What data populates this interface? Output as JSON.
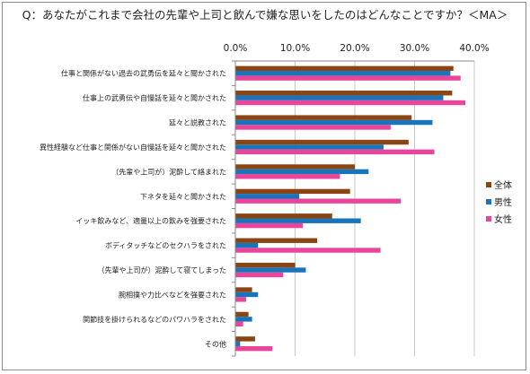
{
  "chart_data": {
    "type": "bar",
    "orientation": "horizontal",
    "title": "Q：あなたがこれまで会社の先輩や上司と飲んで嫌な思いをしたのはどんなことですか？＜MA＞",
    "x_ticks": [
      "0.0%",
      "10.0%",
      "20.0%",
      "30.0%",
      "40.0%"
    ],
    "xlim": [
      0,
      40
    ],
    "grid": true,
    "legend_position": "right",
    "categories": [
      "仕事と関係がない過去の武勇伝を延々と聞かされた",
      "仕事上の武勇伝や自慢話を延々と聞かされた",
      "延々と説教された",
      "異性経験など仕事と関係がない自慢話を延々と聞かされた",
      "（先輩や上司が）泥酔して絡まれた",
      "下ネタを延々と聞かされた",
      "イッキ飲みなど、適量以上の飲みを強要された",
      "ボディタッチなどのセクハラをされた",
      "（先輩や上司が）泥酔して寝てしまった",
      "腕相撲や力比べなどを強要された",
      "関節技を掛けられるなどのパワハラをされた",
      "その他"
    ],
    "series": [
      {
        "name": "全体",
        "color": "#8B4513",
        "values": [
          36.5,
          36.3,
          29.5,
          29.0,
          20.0,
          19.2,
          16.2,
          13.7,
          10.0,
          2.8,
          2.2,
          3.3
        ]
      },
      {
        "name": "男性",
        "color": "#1874BB",
        "values": [
          36.0,
          34.8,
          33.0,
          24.8,
          22.3,
          10.7,
          21.0,
          3.8,
          11.8,
          3.8,
          2.8,
          0.8
        ]
      },
      {
        "name": "女性",
        "color": "#E8459B",
        "values": [
          37.7,
          38.5,
          26.0,
          33.3,
          17.5,
          27.7,
          11.3,
          24.3,
          8.0,
          1.8,
          1.3,
          6.2
        ]
      }
    ]
  }
}
